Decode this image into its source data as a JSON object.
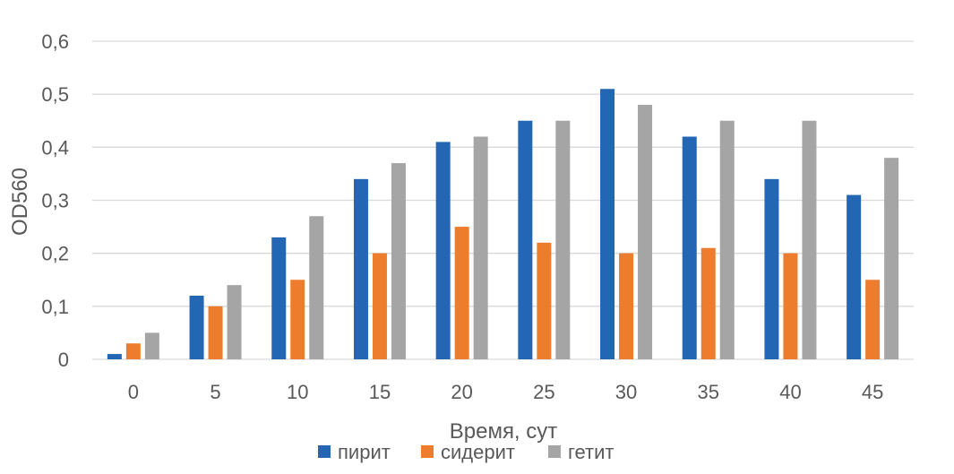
{
  "chart_data": {
    "type": "bar",
    "categories": [
      "0",
      "5",
      "10",
      "15",
      "20",
      "25",
      "30",
      "35",
      "40",
      "45"
    ],
    "series": [
      {
        "name": "пирит",
        "color": "#2266B4",
        "values": [
          0.01,
          0.12,
          0.23,
          0.34,
          0.41,
          0.45,
          0.51,
          0.42,
          0.34,
          0.31
        ]
      },
      {
        "name": "сидерит",
        "color": "#ED7D2C",
        "values": [
          0.03,
          0.1,
          0.15,
          0.2,
          0.25,
          0.22,
          0.2,
          0.21,
          0.2,
          0.15
        ]
      },
      {
        "name": "гетит",
        "color": "#A5A5A5",
        "values": [
          0.05,
          0.14,
          0.27,
          0.37,
          0.42,
          0.45,
          0.48,
          0.45,
          0.45,
          0.38
        ]
      }
    ],
    "xlabel": "Время, сут",
    "ylabel": "OD560",
    "ylim": [
      0,
      0.6
    ],
    "y_ticks": [
      "0",
      "0,1",
      "0,2",
      "0,3",
      "0,4",
      "0,5",
      "0,6"
    ],
    "grid": "horizontal",
    "gridline_color": "#D9D9D9",
    "legend_position": "bottom"
  }
}
